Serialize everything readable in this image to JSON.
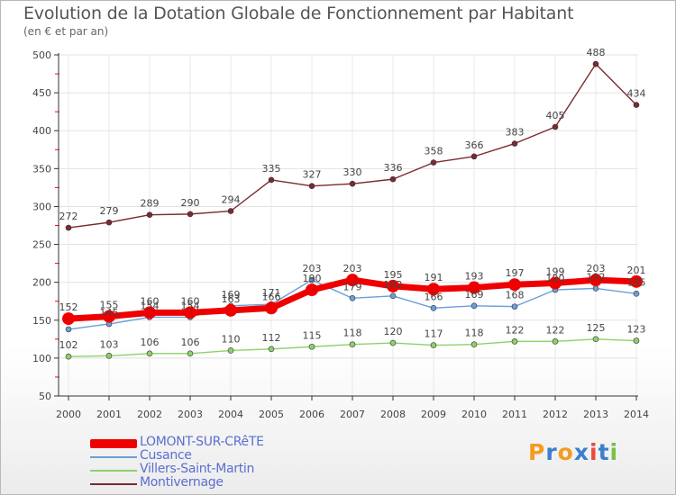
{
  "header": {
    "title": "Evolution de la Dotation Globale de Fonctionnement par Habitant",
    "subtitle": "(en € et par an)"
  },
  "logo": {
    "text": "Proxiti",
    "colors": [
      "#f39c1f",
      "#3a7fd0",
      "#f39c1f",
      "#3a7fd0",
      "#e74c3c",
      "#3a7fd0",
      "#79c142"
    ]
  },
  "chart_data": {
    "type": "line",
    "title": "Evolution de la Dotation Globale de Fonctionnement par Habitant",
    "subtitle": "(en € et par an)",
    "xlabel": "",
    "ylabel": "",
    "ylim": [
      50,
      500
    ],
    "yticks": [
      50,
      100,
      150,
      200,
      250,
      300,
      350,
      400,
      450,
      500
    ],
    "categories": [
      "2000",
      "2001",
      "2002",
      "2003",
      "2004",
      "2005",
      "2006",
      "2007",
      "2008",
      "2009",
      "2010",
      "2011",
      "2012",
      "2013",
      "2014"
    ],
    "grid": true,
    "legend_position": "bottom-left",
    "series": [
      {
        "name": "LOMONT-SUR-CRêTE",
        "color": "#ee0000",
        "style": "thick",
        "values": [
          152,
          155,
          160,
          160,
          163,
          166,
          190,
          203,
          195,
          191,
          193,
          197,
          199,
          203,
          201
        ],
        "labels": [
          "152",
          "155",
          "160",
          "160",
          "163",
          "166",
          "190",
          "203",
          "195",
          "191",
          "193",
          "197",
          "199",
          "203",
          "201"
        ]
      },
      {
        "name": "Cusance",
        "color": "#6a9fd8",
        "style": "thin",
        "values": [
          138,
          145,
          154,
          154,
          169,
          171,
          203,
          179,
          182,
          166,
          169,
          168,
          190,
          192,
          185
        ],
        "labels": [
          "",
          "145",
          "154",
          "154",
          "169",
          "171",
          "203",
          "179",
          "182",
          "166",
          "169",
          "168",
          "190",
          "192",
          "185"
        ]
      },
      {
        "name": "Villers-Saint-Martin",
        "color": "#8ed16b",
        "style": "thin",
        "values": [
          102,
          103,
          106,
          106,
          110,
          112,
          115,
          118,
          120,
          117,
          118,
          122,
          122,
          125,
          123
        ],
        "labels": [
          "102",
          "103",
          "106",
          "106",
          "110",
          "112",
          "115",
          "118",
          "120",
          "117",
          "118",
          "122",
          "122",
          "125",
          "123"
        ]
      },
      {
        "name": "Montivernage",
        "color": "#7a2a30",
        "style": "thin",
        "values": [
          272,
          279,
          289,
          290,
          294,
          335,
          327,
          330,
          336,
          358,
          366,
          383,
          405,
          488,
          434
        ],
        "labels": [
          "272",
          "279",
          "289",
          "290",
          "294",
          "335",
          "327",
          "330",
          "336",
          "358",
          "366",
          "383",
          "405",
          "488",
          "434"
        ]
      }
    ]
  }
}
